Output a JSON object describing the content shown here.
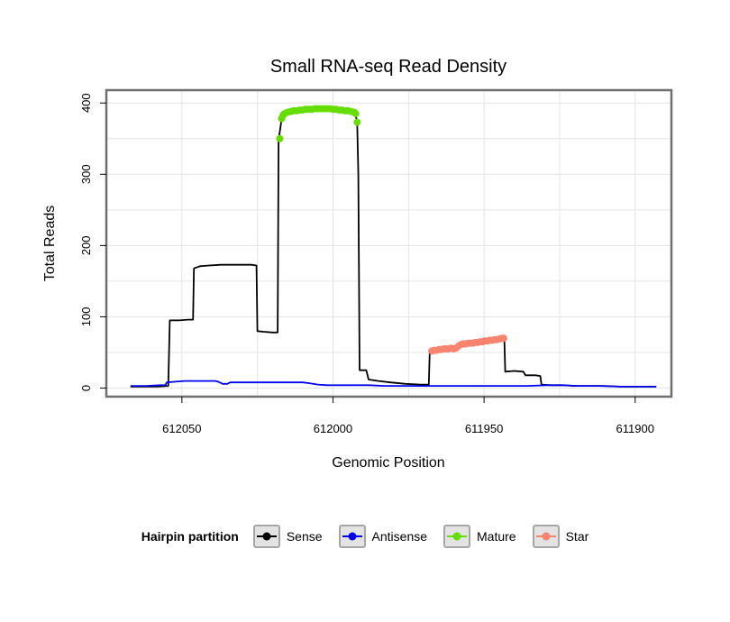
{
  "chart_data": {
    "type": "line",
    "title": "Small RNA-seq Read Density",
    "xlabel": "Genomic Position",
    "ylabel": "Total Reads",
    "grid": true,
    "x_axis": {
      "min": 612075,
      "max": 611888,
      "reversed": true,
      "ticks": [
        612050,
        612000,
        611950,
        611900
      ],
      "minor_step": 25
    },
    "y_axis": {
      "min": -12,
      "max": 418,
      "ticks": [
        0,
        100,
        200,
        300,
        400
      ],
      "minor_step": 50
    },
    "legend": {
      "title": "Hairpin partition",
      "position": "bottom"
    },
    "series": [
      {
        "name": "Sense",
        "color": "#000000",
        "type": "line",
        "points": [
          [
            612067,
            2
          ],
          [
            612062,
            2
          ],
          [
            612058,
            2
          ],
          [
            612054.5,
            3
          ],
          [
            612054,
            95
          ],
          [
            612051,
            95
          ],
          [
            612048,
            96
          ],
          [
            612046.3,
            96
          ],
          [
            612046,
            168
          ],
          [
            612044,
            171
          ],
          [
            612041,
            172
          ],
          [
            612037,
            173
          ],
          [
            612032,
            173
          ],
          [
            612027,
            173
          ],
          [
            612025.3,
            172
          ],
          [
            612025,
            80
          ],
          [
            612023,
            79
          ],
          [
            612020,
            78
          ],
          [
            612018.3,
            78
          ],
          [
            612018,
            348
          ],
          [
            612017.4,
            365
          ],
          [
            612017,
            378
          ],
          [
            612016,
            385
          ],
          [
            612014,
            388
          ],
          [
            612011,
            390
          ],
          [
            612008,
            391
          ],
          [
            612005,
            392
          ],
          [
            612002,
            392
          ],
          [
            611999,
            391
          ],
          [
            611996,
            389
          ],
          [
            611994,
            388
          ],
          [
            611992.6,
            385
          ],
          [
            611992,
            373
          ],
          [
            611991.6,
            300
          ],
          [
            611991.2,
            25
          ],
          [
            611989,
            25
          ],
          [
            611988.2,
            12
          ],
          [
            611985,
            10
          ],
          [
            611981,
            8
          ],
          [
            611976,
            6
          ],
          [
            611971,
            5
          ],
          [
            611968.3,
            5
          ],
          [
            611968,
            50
          ],
          [
            611967,
            52
          ],
          [
            611965,
            53
          ],
          [
            611963,
            55
          ],
          [
            611961,
            55
          ],
          [
            611959,
            56
          ],
          [
            611958,
            60
          ],
          [
            611956,
            62
          ],
          [
            611954,
            63
          ],
          [
            611952,
            64
          ],
          [
            611950,
            65
          ],
          [
            611948,
            66
          ],
          [
            611946,
            67
          ],
          [
            611944.5,
            69
          ],
          [
            611943.7,
            70
          ],
          [
            611943.3,
            70
          ],
          [
            611943,
            23
          ],
          [
            611940,
            24
          ],
          [
            611937,
            23
          ],
          [
            611936.3,
            18
          ],
          [
            611933,
            18
          ],
          [
            611931.4,
            17
          ],
          [
            611931,
            5
          ],
          [
            611928,
            4
          ],
          [
            611924,
            4
          ],
          [
            611920,
            3
          ],
          [
            611915,
            3
          ],
          [
            611910,
            3
          ],
          [
            611905,
            2
          ],
          [
            611900,
            2
          ],
          [
            611893,
            2
          ]
        ]
      },
      {
        "name": "Antisense",
        "color": "#0000EE",
        "type": "line",
        "points": [
          [
            612067,
            3
          ],
          [
            612062,
            3
          ],
          [
            612057,
            4
          ],
          [
            612055.5,
            4
          ],
          [
            612055,
            8
          ],
          [
            612052,
            9
          ],
          [
            612049,
            10
          ],
          [
            612045,
            10
          ],
          [
            612041,
            10
          ],
          [
            612039,
            10
          ],
          [
            612038,
            9
          ],
          [
            612036.5,
            6
          ],
          [
            612035,
            6
          ],
          [
            612034,
            8
          ],
          [
            612030,
            8
          ],
          [
            612026,
            8
          ],
          [
            612022,
            8
          ],
          [
            612018,
            8
          ],
          [
            612014,
            8
          ],
          [
            612010,
            8
          ],
          [
            612008,
            7
          ],
          [
            612005,
            5
          ],
          [
            612002,
            4
          ],
          [
            611998,
            4
          ],
          [
            611993,
            4
          ],
          [
            611988,
            4
          ],
          [
            611983,
            3
          ],
          [
            611978,
            3
          ],
          [
            611972,
            3
          ],
          [
            611965,
            3
          ],
          [
            611958,
            3
          ],
          [
            611950,
            3
          ],
          [
            611943,
            3
          ],
          [
            611936,
            3
          ],
          [
            611929,
            4
          ],
          [
            611924,
            4
          ],
          [
            611919,
            3
          ],
          [
            611912,
            3
          ],
          [
            611905,
            2
          ],
          [
            611898,
            2
          ],
          [
            611893,
            2
          ]
        ]
      },
      {
        "name": "Mature",
        "color": "#66DD00",
        "type": "points",
        "points": [
          [
            612017.6,
            350
          ],
          [
            612017,
            378
          ],
          [
            612016.5,
            383
          ],
          [
            612016,
            385
          ],
          [
            612015,
            387
          ],
          [
            612014,
            388
          ],
          [
            612013,
            389
          ],
          [
            612012,
            389
          ],
          [
            612011,
            390
          ],
          [
            612010,
            390
          ],
          [
            612009,
            391
          ],
          [
            612008,
            391
          ],
          [
            612007,
            391
          ],
          [
            612006,
            392
          ],
          [
            612005,
            392
          ],
          [
            612004,
            392
          ],
          [
            612003,
            392
          ],
          [
            612002,
            392
          ],
          [
            612001,
            392
          ],
          [
            612000,
            391
          ],
          [
            611999,
            391
          ],
          [
            611998,
            390
          ],
          [
            611997,
            390
          ],
          [
            611996,
            389
          ],
          [
            611995,
            389
          ],
          [
            611994,
            388
          ],
          [
            611993,
            387
          ],
          [
            611992.5,
            385
          ],
          [
            611992,
            373
          ]
        ]
      },
      {
        "name": "Star",
        "color": "#F8836F",
        "type": "points",
        "points": [
          [
            611967.3,
            52
          ],
          [
            611966.5,
            53
          ],
          [
            611965.7,
            53
          ],
          [
            611964.9,
            54
          ],
          [
            611964.1,
            54
          ],
          [
            611963.3,
            55
          ],
          [
            611962.5,
            55
          ],
          [
            611961.7,
            55
          ],
          [
            611960.9,
            56
          ],
          [
            611960.1,
            55
          ],
          [
            611959.3,
            56
          ],
          [
            611958.5,
            59
          ],
          [
            611957.7,
            61
          ],
          [
            611956.9,
            62
          ],
          [
            611956.1,
            62
          ],
          [
            611955.3,
            63
          ],
          [
            611954.5,
            63
          ],
          [
            611953.7,
            63
          ],
          [
            611952.9,
            64
          ],
          [
            611952.1,
            64
          ],
          [
            611951.3,
            65
          ],
          [
            611950.5,
            65
          ],
          [
            611949.7,
            66
          ],
          [
            611948.9,
            66
          ],
          [
            611948.1,
            67
          ],
          [
            611947.3,
            67
          ],
          [
            611946.5,
            68
          ],
          [
            611945.7,
            68
          ],
          [
            611944.9,
            69
          ],
          [
            611944.1,
            70
          ],
          [
            611943.5,
            70
          ]
        ]
      }
    ]
  },
  "colors": {
    "grid": "#e4e4e4",
    "panel_border": "#6f6f6f",
    "legend_key_bg": "#e3e3e3",
    "legend_key_border": "#a6a6a6"
  }
}
